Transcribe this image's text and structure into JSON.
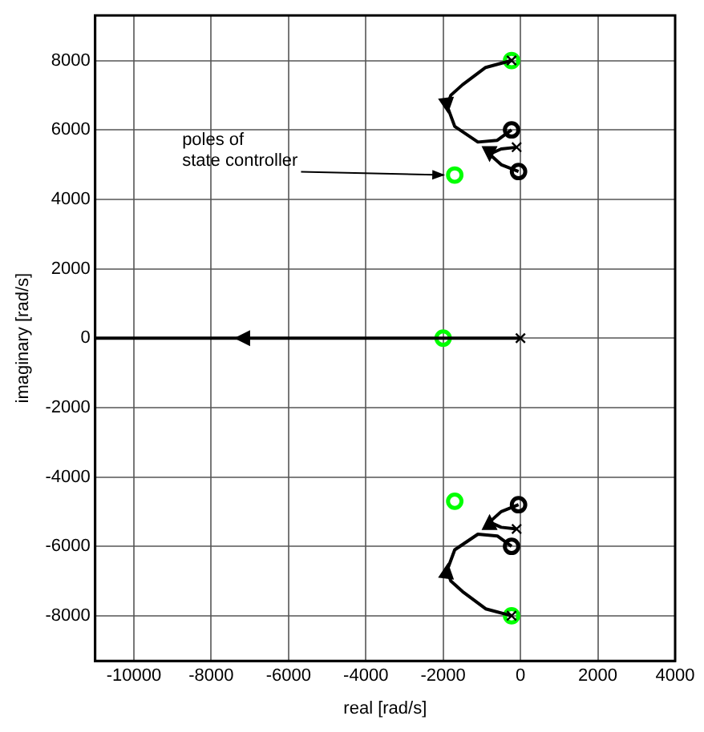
{
  "chart_data": {
    "type": "scatter",
    "xlabel": "real [rad/s]",
    "ylabel": "imaginary [rad/s]",
    "xlim": [
      -11000,
      4000
    ],
    "ylim": [
      -9300,
      9300
    ],
    "xticks": [
      -10000,
      -8000,
      -6000,
      -4000,
      -2000,
      0,
      2000,
      4000
    ],
    "yticks": [
      -8000,
      -6000,
      -4000,
      -2000,
      0,
      2000,
      4000,
      6000,
      8000
    ],
    "grid": true,
    "legend": false,
    "annotations": [
      {
        "text": "poles of\nstate controller",
        "x": -1700,
        "y": 4700
      }
    ],
    "series": [
      {
        "type": "line",
        "color": "#000000",
        "marker": "none",
        "x": [
          -230,
          -900,
          -1500,
          -1800,
          -1900,
          -1700,
          -1100,
          -600,
          -230
        ],
        "values": [
          8000,
          7800,
          7300,
          7000,
          6700,
          6100,
          5650,
          5700,
          6000
        ]
      },
      {
        "type": "line",
        "color": "#000000",
        "marker": "none",
        "x": [
          -100,
          -500,
          -800,
          -500,
          -50
        ],
        "values": [
          5500,
          5450,
          5300,
          5000,
          4800
        ]
      },
      {
        "type": "line",
        "color": "#000000",
        "marker": "none",
        "x": [
          0,
          -7200,
          -11000
        ],
        "values": [
          0,
          0,
          0
        ]
      },
      {
        "type": "line",
        "color": "#000000",
        "marker": "none",
        "x": [
          -230,
          -900,
          -1500,
          -1800,
          -1900,
          -1700,
          -1100,
          -600,
          -230
        ],
        "values": [
          -8000,
          -7800,
          -7300,
          -7000,
          -6700,
          -6100,
          -5650,
          -5700,
          -6000
        ]
      },
      {
        "type": "line",
        "color": "#000000",
        "marker": "none",
        "x": [
          -100,
          -500,
          -800,
          -500,
          -50
        ],
        "values": [
          -5500,
          -5450,
          -5300,
          -5000,
          -4800
        ]
      },
      {
        "type": "scatter",
        "color": "#000000",
        "marker": "cross",
        "x": [
          -230,
          -100,
          0,
          -100,
          -230
        ],
        "values": [
          8000,
          5500,
          0,
          -5500,
          -8000
        ]
      },
      {
        "type": "scatter",
        "color": "#00ff00",
        "marker": "circle",
        "x": [
          -230,
          -1700,
          -2000,
          -1700,
          -230
        ],
        "values": [
          8000,
          4700,
          0,
          -4700,
          -8000
        ]
      },
      {
        "type": "scatter",
        "color": "#000000",
        "marker": "circle",
        "x": [
          -230,
          -50,
          -50,
          -230
        ],
        "values": [
          6000,
          4800,
          -4800,
          -6000
        ]
      }
    ]
  }
}
